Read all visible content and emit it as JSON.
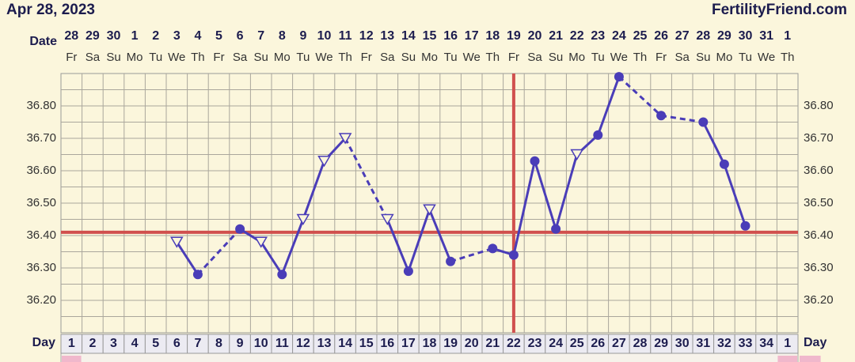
{
  "header": {
    "date": "Apr 28, 2023",
    "site": "FertilityFriend.com"
  },
  "chart_data": {
    "type": "line",
    "date_label": "Date",
    "day_label": "Day",
    "dates": [
      "28",
      "29",
      "30",
      "1",
      "2",
      "3",
      "4",
      "5",
      "6",
      "7",
      "8",
      "9",
      "10",
      "11",
      "12",
      "13",
      "14",
      "15",
      "16",
      "17",
      "18",
      "19",
      "20",
      "21",
      "22",
      "23",
      "24",
      "25",
      "26",
      "27",
      "28",
      "29",
      "30",
      "31",
      "1"
    ],
    "weekdays": [
      "Fr",
      "Sa",
      "Su",
      "Mo",
      "Tu",
      "We",
      "Th",
      "Fr",
      "Sa",
      "Su",
      "Mo",
      "Tu",
      "We",
      "Th",
      "Fr",
      "Sa",
      "Su",
      "Mo",
      "Tu",
      "We",
      "Th",
      "Fr",
      "Sa",
      "Su",
      "Mo",
      "Tu",
      "We",
      "Th",
      "Fr",
      "Sa",
      "Su",
      "Mo",
      "Tu",
      "We",
      "Th"
    ],
    "categories": [
      "1",
      "2",
      "3",
      "4",
      "5",
      "6",
      "7",
      "8",
      "9",
      "10",
      "11",
      "12",
      "13",
      "14",
      "15",
      "16",
      "17",
      "18",
      "19",
      "20",
      "21",
      "22",
      "23",
      "24",
      "25",
      "26",
      "27",
      "28",
      "29",
      "30",
      "31",
      "32",
      "33",
      "34",
      "1"
    ],
    "series": [
      {
        "color": "#4a3db8",
        "values": [
          null,
          null,
          null,
          null,
          null,
          36.38,
          36.28,
          null,
          36.42,
          36.38,
          36.28,
          36.45,
          36.63,
          36.7,
          null,
          36.45,
          36.29,
          36.48,
          36.32,
          null,
          36.36,
          36.34,
          36.63,
          36.42,
          36.65,
          36.71,
          36.89,
          null,
          36.77,
          null,
          36.75,
          36.62,
          36.43,
          null,
          null
        ],
        "markers": [
          null,
          null,
          null,
          null,
          null,
          "open",
          "filled",
          null,
          "filled",
          "open",
          "filled",
          "open",
          "open",
          "open",
          null,
          "open",
          "filled",
          "open",
          "filled",
          null,
          "filled",
          "filled",
          "filled",
          "filled",
          "open",
          "filled",
          "filled",
          null,
          "filled",
          null,
          "filled",
          "filled",
          "filled",
          null,
          null
        ]
      }
    ],
    "coverline": 36.41,
    "coverline_color": "#d0504e",
    "ovulation_day_index": 21,
    "ylim": [
      36.1,
      36.9
    ],
    "yticks": [
      {
        "value": 36.2,
        "label": "36.20"
      },
      {
        "value": 36.3,
        "label": "36.30"
      },
      {
        "value": 36.4,
        "label": "36.40"
      },
      {
        "value": 36.5,
        "label": "36.50"
      },
      {
        "value": 36.6,
        "label": "36.60"
      },
      {
        "value": 36.7,
        "label": "36.70"
      },
      {
        "value": 36.8,
        "label": "36.80"
      }
    ],
    "grid": true
  }
}
